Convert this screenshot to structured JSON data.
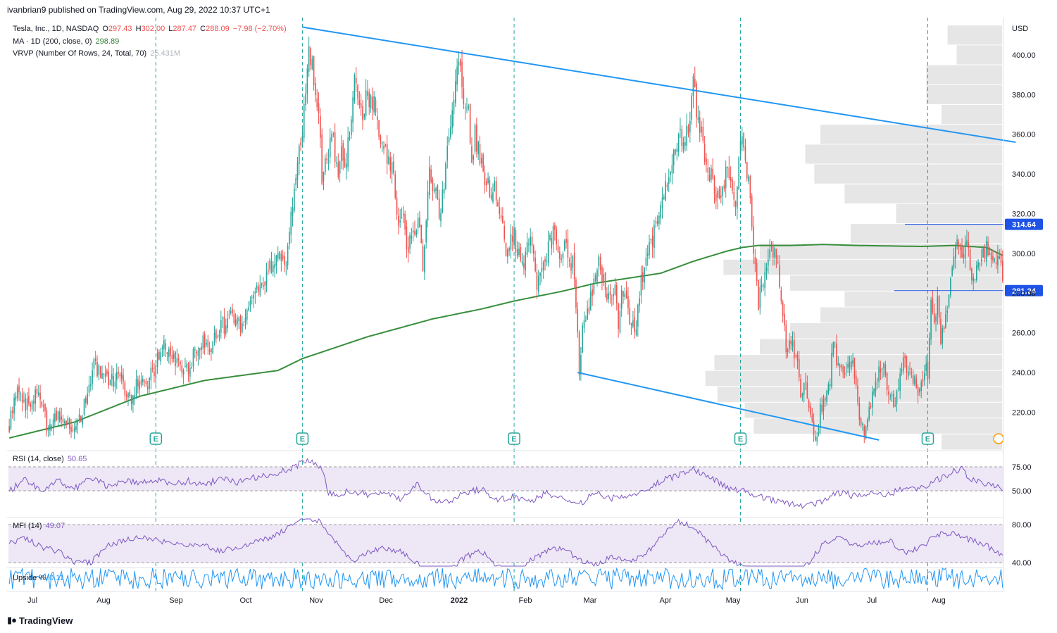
{
  "publisher_line": "ivanbrian9 published on TradingView.com, Aug 29, 2022 10:37 UTC+1",
  "legend": {
    "symbol": "Tesla, Inc., 1D, NASDAQ",
    "o_label": "O",
    "o": "297.43",
    "h_label": "H",
    "h": "302.00",
    "l_label": "L",
    "l": "287.47",
    "c_label": "C",
    "c": "288.09",
    "chg": "−7.98 (−2.70%)",
    "ma_label": "MA · 1D (200, close, 0)",
    "ma_value": "298.89",
    "vrvp_label": "VRVP (Number Of Rows, 24, Total, 70)",
    "vrvp_value": "25.431M"
  },
  "rsi_legend": {
    "label": "RSI (14, close)",
    "value": "50.65"
  },
  "mfi_legend": {
    "label": "MFI (14)",
    "value": "49.07"
  },
  "upside_legend": {
    "label": "Upside %",
    "value": "0.11"
  },
  "footer_logo": "TradingView",
  "colors": {
    "up": "#26a69a",
    "down": "#ef5350",
    "ma": "#388e3c",
    "trend": "#2196f3",
    "rsi": "#7e57c2",
    "band": "#ede7f6",
    "upside": "#2196f3",
    "vrvp": "#e6e6e6"
  },
  "chart_data": {
    "type": "candlestick",
    "currency": "USD",
    "price_ticks": [
      "400.00",
      "380.00",
      "360.00",
      "340.00",
      "320.00",
      "300.00",
      "280.00",
      "260.00",
      "240.00",
      "220.00"
    ],
    "price_labels": [
      {
        "label": "314.64",
        "price": 314.64
      },
      {
        "label": "281.24",
        "price": 281.24
      }
    ],
    "x_labels": [
      "Jul",
      "Aug",
      "Sep",
      "Oct",
      "Nov",
      "Dec",
      "2022",
      "Feb",
      "Mar",
      "Apr",
      "May",
      "Jun",
      "Jul",
      "Aug"
    ],
    "earnings_marker": "E",
    "earnings_days": [
      90,
      180,
      310,
      449,
      564
    ],
    "trendlines": [
      {
        "name": "upper",
        "x1": 180,
        "y1": 414,
        "x2": 618,
        "y2": 356
      },
      {
        "name": "lower",
        "x1": 349,
        "y1": 240,
        "x2": 534,
        "y2": 206
      }
    ],
    "keypoints": [
      [
        0,
        214
      ],
      [
        4,
        232
      ],
      [
        10,
        223
      ],
      [
        18,
        230
      ],
      [
        24,
        210
      ],
      [
        30,
        218
      ],
      [
        38,
        213
      ],
      [
        44,
        217
      ],
      [
        52,
        243
      ],
      [
        58,
        236
      ],
      [
        62,
        235
      ],
      [
        68,
        238
      ],
      [
        74,
        224
      ],
      [
        80,
        237
      ],
      [
        84,
        234
      ],
      [
        90,
        244
      ],
      [
        94,
        254
      ],
      [
        98,
        248
      ],
      [
        104,
        245
      ],
      [
        110,
        242
      ],
      [
        118,
        257
      ],
      [
        124,
        254
      ],
      [
        130,
        262
      ],
      [
        136,
        268
      ],
      [
        140,
        262
      ],
      [
        146,
        270
      ],
      [
        150,
        280
      ],
      [
        156,
        282
      ],
      [
        160,
        292
      ],
      [
        166,
        300
      ],
      [
        170,
        296
      ],
      [
        176,
        340
      ],
      [
        180,
        360
      ],
      [
        184,
        405
      ],
      [
        186,
        395
      ],
      [
        188,
        380
      ],
      [
        190,
        366
      ],
      [
        192,
        340
      ],
      [
        196,
        350
      ],
      [
        198,
        362
      ],
      [
        202,
        336
      ],
      [
        204,
        352
      ],
      [
        206,
        344
      ],
      [
        208,
        356
      ],
      [
        212,
        388
      ],
      [
        216,
        368
      ],
      [
        220,
        380
      ],
      [
        224,
        376
      ],
      [
        228,
        356
      ],
      [
        232,
        350
      ],
      [
        236,
        340
      ],
      [
        238,
        318
      ],
      [
        242,
        322
      ],
      [
        244,
        302
      ],
      [
        248,
        310
      ],
      [
        252,
        314
      ],
      [
        254,
        296
      ],
      [
        258,
        340
      ],
      [
        262,
        332
      ],
      [
        264,
        318
      ],
      [
        266,
        328
      ],
      [
        270,
        362
      ],
      [
        274,
        390
      ],
      [
        276,
        398
      ],
      [
        278,
        380
      ],
      [
        282,
        370
      ],
      [
        284,
        348
      ],
      [
        286,
        360
      ],
      [
        288,
        352
      ],
      [
        292,
        334
      ],
      [
        294,
        336
      ],
      [
        296,
        324
      ],
      [
        298,
        334
      ],
      [
        302,
        314
      ],
      [
        306,
        300
      ],
      [
        310,
        310
      ],
      [
        312,
        300
      ],
      [
        316,
        294
      ],
      [
        318,
        310
      ],
      [
        322,
        304
      ],
      [
        324,
        284
      ],
      [
        328,
        294
      ],
      [
        334,
        310
      ],
      [
        338,
        300
      ],
      [
        342,
        302
      ],
      [
        346,
        294
      ],
      [
        348,
        276
      ],
      [
        350,
        240
      ],
      [
        352,
        264
      ],
      [
        356,
        274
      ],
      [
        360,
        286
      ],
      [
        362,
        294
      ],
      [
        366,
        282
      ],
      [
        370,
        276
      ],
      [
        372,
        280
      ],
      [
        374,
        264
      ],
      [
        376,
        282
      ],
      [
        380,
        270
      ],
      [
        384,
        260
      ],
      [
        388,
        285
      ],
      [
        392,
        300
      ],
      [
        396,
        310
      ],
      [
        400,
        326
      ],
      [
        404,
        334
      ],
      [
        406,
        345
      ],
      [
        410,
        356
      ],
      [
        412,
        365
      ],
      [
        414,
        354
      ],
      [
        416,
        362
      ],
      [
        418,
        368
      ],
      [
        420,
        385
      ],
      [
        424,
        360
      ],
      [
        426,
        358
      ],
      [
        428,
        344
      ],
      [
        432,
        336
      ],
      [
        436,
        326
      ],
      [
        440,
        340
      ],
      [
        444,
        334
      ],
      [
        446,
        326
      ],
      [
        450,
        364
      ],
      [
        452,
        346
      ],
      [
        454,
        336
      ],
      [
        456,
        312
      ],
      [
        458,
        290
      ],
      [
        460,
        276
      ],
      [
        462,
        282
      ],
      [
        464,
        292
      ],
      [
        466,
        296
      ],
      [
        468,
        300
      ],
      [
        470,
        304
      ],
      [
        472,
        294
      ],
      [
        474,
        280
      ],
      [
        476,
        260
      ],
      [
        478,
        248
      ],
      [
        480,
        258
      ],
      [
        484,
        242
      ],
      [
        486,
        226
      ],
      [
        488,
        236
      ],
      [
        490,
        230
      ],
      [
        492,
        218
      ],
      [
        494,
        208
      ],
      [
        496,
        210
      ],
      [
        498,
        222
      ],
      [
        500,
        224
      ],
      [
        504,
        236
      ],
      [
        506,
        256
      ],
      [
        508,
        248
      ],
      [
        510,
        244
      ],
      [
        514,
        240
      ],
      [
        518,
        246
      ],
      [
        520,
        232
      ],
      [
        522,
        216
      ],
      [
        526,
        210
      ],
      [
        528,
        220
      ],
      [
        532,
        236
      ],
      [
        534,
        240
      ],
      [
        536,
        246
      ],
      [
        540,
        226
      ],
      [
        544,
        226
      ],
      [
        546,
        236
      ],
      [
        550,
        248
      ],
      [
        552,
        238
      ],
      [
        556,
        236
      ],
      [
        558,
        226
      ],
      [
        562,
        242
      ],
      [
        564,
        240
      ],
      [
        566,
        272
      ],
      [
        568,
        262
      ],
      [
        570,
        276
      ],
      [
        572,
        258
      ],
      [
        576,
        272
      ],
      [
        578,
        292
      ],
      [
        580,
        300
      ],
      [
        582,
        310
      ],
      [
        584,
        302
      ],
      [
        586,
        300
      ],
      [
        588,
        308
      ],
      [
        590,
        296
      ],
      [
        592,
        286
      ],
      [
        594,
        292
      ],
      [
        598,
        300
      ],
      [
        600,
        302
      ],
      [
        602,
        304
      ],
      [
        604,
        296
      ],
      [
        606,
        292
      ],
      [
        608,
        300
      ],
      [
        610,
        288
      ]
    ],
    "ma_values": [
      [
        0,
        207
      ],
      [
        40,
        215
      ],
      [
        80,
        228
      ],
      [
        120,
        236
      ],
      [
        165,
        241
      ],
      [
        180,
        247
      ],
      [
        220,
        258
      ],
      [
        260,
        267
      ],
      [
        290,
        272
      ],
      [
        310,
        276
      ],
      [
        340,
        281
      ],
      [
        360,
        285
      ],
      [
        400,
        290
      ],
      [
        420,
        296
      ],
      [
        440,
        301
      ],
      [
        450,
        303
      ],
      [
        460,
        304
      ],
      [
        480,
        304
      ],
      [
        500,
        304.5
      ],
      [
        520,
        304
      ],
      [
        560,
        303.5
      ],
      [
        580,
        304
      ],
      [
        600,
        303
      ],
      [
        610,
        299
      ]
    ],
    "vrvp_bins": [
      {
        "lo": 405,
        "hi": 415,
        "w": 0.18
      },
      {
        "lo": 395,
        "hi": 405,
        "w": 0.15
      },
      {
        "lo": 385,
        "hi": 395,
        "w": 0.25
      },
      {
        "lo": 375,
        "hi": 385,
        "w": 0.25
      },
      {
        "lo": 365,
        "hi": 375,
        "w": 0.2
      },
      {
        "lo": 355,
        "hi": 365,
        "w": 0.6
      },
      {
        "lo": 345,
        "hi": 355,
        "w": 0.65
      },
      {
        "lo": 335,
        "hi": 345,
        "w": 0.62
      },
      {
        "lo": 325,
        "hi": 335,
        "w": 0.52
      },
      {
        "lo": 315,
        "hi": 325,
        "w": 0.35
      },
      {
        "lo": 305,
        "hi": 315,
        "w": 0.5
      },
      {
        "lo": 297,
        "hi": 305,
        "w": 0.8
      },
      {
        "lo": 289,
        "hi": 297,
        "w": 0.92
      },
      {
        "lo": 281,
        "hi": 289,
        "w": 0.7
      },
      {
        "lo": 273,
        "hi": 281,
        "w": 0.52
      },
      {
        "lo": 265,
        "hi": 273,
        "w": 0.6
      },
      {
        "lo": 257,
        "hi": 265,
        "w": 0.7
      },
      {
        "lo": 249,
        "hi": 257,
        "w": 0.8
      },
      {
        "lo": 241,
        "hi": 249,
        "w": 0.95
      },
      {
        "lo": 233,
        "hi": 241,
        "w": 0.98
      },
      {
        "lo": 225,
        "hi": 233,
        "w": 0.94
      },
      {
        "lo": 217,
        "hi": 225,
        "w": 0.85
      },
      {
        "lo": 209,
        "hi": 217,
        "w": 0.82
      },
      {
        "lo": 201,
        "hi": 209,
        "w": 0.2
      }
    ],
    "rsi": {
      "levels": [
        "75.00",
        "50.00"
      ],
      "upper": 70,
      "lower": 30,
      "min": 20,
      "max": 85,
      "keypoints": [
        [
          0,
          50
        ],
        [
          10,
          62
        ],
        [
          20,
          48
        ],
        [
          30,
          60
        ],
        [
          40,
          52
        ],
        [
          50,
          63
        ],
        [
          60,
          55
        ],
        [
          70,
          60
        ],
        [
          80,
          58
        ],
        [
          90,
          61
        ],
        [
          100,
          57
        ],
        [
          110,
          60
        ],
        [
          120,
          56
        ],
        [
          130,
          64
        ],
        [
          140,
          58
        ],
        [
          150,
          64
        ],
        [
          160,
          66
        ],
        [
          170,
          72
        ],
        [
          176,
          76
        ],
        [
          180,
          80
        ],
        [
          186,
          82
        ],
        [
          192,
          72
        ],
        [
          196,
          48
        ],
        [
          200,
          45
        ],
        [
          210,
          50
        ],
        [
          220,
          46
        ],
        [
          230,
          49
        ],
        [
          240,
          42
        ],
        [
          250,
          57
        ],
        [
          260,
          40
        ],
        [
          270,
          38
        ],
        [
          280,
          48
        ],
        [
          290,
          52
        ],
        [
          300,
          40
        ],
        [
          310,
          44
        ],
        [
          320,
          38
        ],
        [
          330,
          48
        ],
        [
          340,
          42
        ],
        [
          350,
          36
        ],
        [
          360,
          48
        ],
        [
          370,
          42
        ],
        [
          380,
          46
        ],
        [
          390,
          50
        ],
        [
          400,
          60
        ],
        [
          410,
          66
        ],
        [
          420,
          72
        ],
        [
          430,
          66
        ],
        [
          440,
          54
        ],
        [
          450,
          50
        ],
        [
          460,
          44
        ],
        [
          470,
          40
        ],
        [
          480,
          36
        ],
        [
          490,
          34
        ],
        [
          500,
          40
        ],
        [
          510,
          48
        ],
        [
          520,
          44
        ],
        [
          530,
          48
        ],
        [
          540,
          46
        ],
        [
          550,
          54
        ],
        [
          560,
          52
        ],
        [
          570,
          62
        ],
        [
          580,
          70
        ],
        [
          585,
          74
        ],
        [
          590,
          62
        ],
        [
          600,
          58
        ],
        [
          605,
          55
        ],
        [
          610,
          50
        ]
      ]
    },
    "mfi": {
      "levels": [
        "80.00",
        "40.00"
      ],
      "upper": 80,
      "lower": 20,
      "min": 10,
      "max": 100,
      "keypoints": [
        [
          0,
          60
        ],
        [
          10,
          66
        ],
        [
          20,
          56
        ],
        [
          30,
          52
        ],
        [
          40,
          40
        ],
        [
          50,
          40
        ],
        [
          60,
          58
        ],
        [
          70,
          62
        ],
        [
          80,
          68
        ],
        [
          90,
          64
        ],
        [
          100,
          60
        ],
        [
          110,
          58
        ],
        [
          120,
          58
        ],
        [
          130,
          52
        ],
        [
          140,
          56
        ],
        [
          150,
          62
        ],
        [
          160,
          66
        ],
        [
          170,
          75
        ],
        [
          180,
          88
        ],
        [
          190,
          84
        ],
        [
          200,
          62
        ],
        [
          210,
          42
        ],
        [
          220,
          50
        ],
        [
          230,
          56
        ],
        [
          240,
          52
        ],
        [
          250,
          40
        ],
        [
          260,
          22
        ],
        [
          270,
          30
        ],
        [
          280,
          46
        ],
        [
          290,
          52
        ],
        [
          300,
          36
        ],
        [
          310,
          30
        ],
        [
          320,
          42
        ],
        [
          330,
          52
        ],
        [
          340,
          56
        ],
        [
          350,
          42
        ],
        [
          360,
          38
        ],
        [
          370,
          46
        ],
        [
          380,
          42
        ],
        [
          390,
          48
        ],
        [
          400,
          66
        ],
        [
          410,
          84
        ],
        [
          420,
          78
        ],
        [
          430,
          60
        ],
        [
          440,
          46
        ],
        [
          450,
          36
        ],
        [
          460,
          24
        ],
        [
          470,
          30
        ],
        [
          480,
          22
        ],
        [
          490,
          38
        ],
        [
          500,
          60
        ],
        [
          510,
          66
        ],
        [
          520,
          58
        ],
        [
          530,
          60
        ],
        [
          540,
          64
        ],
        [
          550,
          50
        ],
        [
          560,
          56
        ],
        [
          570,
          70
        ],
        [
          580,
          70
        ],
        [
          590,
          64
        ],
        [
          600,
          58
        ],
        [
          605,
          52
        ],
        [
          610,
          49
        ]
      ]
    },
    "upside": {
      "min": -0.6,
      "max": 0.8
    }
  }
}
